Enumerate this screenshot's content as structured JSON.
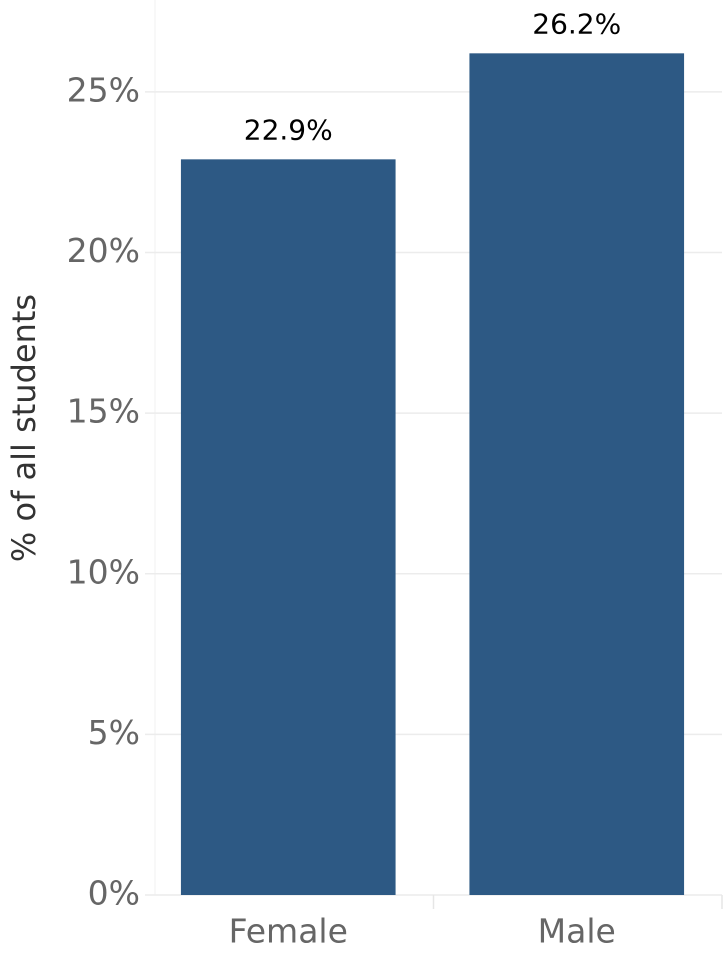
{
  "chart_data": {
    "type": "bar",
    "y_label": "% of all students",
    "categories": [
      "Female",
      "Male"
    ],
    "values": [
      22.9,
      26.2
    ],
    "value_labels": [
      "22.9%",
      "26.2%"
    ],
    "color": "#2d5984",
    "ylim": [
      0,
      27.86
    ],
    "yticks": [
      {
        "value": 0,
        "label": "0%"
      },
      {
        "value": 5,
        "label": "5%"
      },
      {
        "value": 10,
        "label": "10%"
      },
      {
        "value": 15,
        "label": "15%"
      },
      {
        "value": 20,
        "label": "20%"
      },
      {
        "value": 25,
        "label": "25%"
      }
    ],
    "grid": true
  }
}
